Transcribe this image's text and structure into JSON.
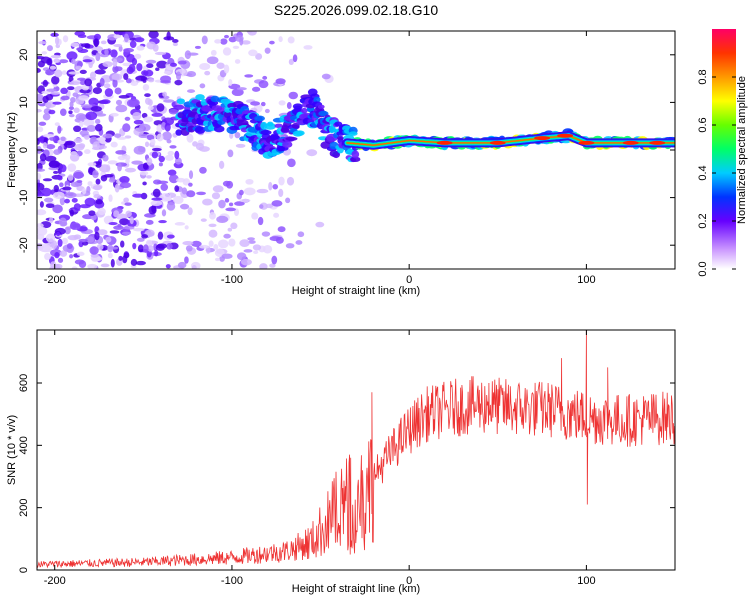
{
  "title": "S225.2026.099.02.18.G10",
  "chart_data": [
    {
      "type": "heatmap",
      "name": "spectrogram",
      "xlabel": "Height of straight line (km)",
      "ylabel": "Frequency (Hz)",
      "xlim": [
        -210,
        150
      ],
      "ylim": [
        -25,
        25
      ],
      "xticks": [
        -200,
        -100,
        0,
        100
      ],
      "yticks": [
        -20,
        -10,
        0,
        10,
        20
      ],
      "colorbar": {
        "label": "Normalized spectral amplitude",
        "range": [
          0,
          1
        ],
        "ticks": [
          0.0,
          0.2,
          0.4,
          0.6,
          0.8
        ]
      },
      "ridge": {
        "description": "dominant frequency line",
        "points": [
          [
            -130,
            7
          ],
          [
            -110,
            8
          ],
          [
            -95,
            6
          ],
          [
            -80,
            2
          ],
          [
            -65,
            5
          ],
          [
            -55,
            9
          ],
          [
            -45,
            3
          ],
          [
            -35,
            1.5
          ],
          [
            -20,
            1
          ],
          [
            0,
            2
          ],
          [
            20,
            1.5
          ],
          [
            50,
            1.5
          ],
          [
            75,
            2.5
          ],
          [
            90,
            3
          ],
          [
            100,
            1.5
          ],
          [
            130,
            1.5
          ],
          [
            150,
            1.5
          ]
        ]
      }
    },
    {
      "type": "line",
      "name": "snr",
      "xlabel": "Height of straight line (km)",
      "ylabel": "SNR (10 * v/v)",
      "xlim": [
        -210,
        150
      ],
      "ylim": [
        0,
        770
      ],
      "xticks": [
        -200,
        -100,
        0,
        100
      ],
      "yticks": [
        0,
        200,
        400,
        600
      ],
      "color": "#ee3333",
      "envelope": [
        [
          -210,
          18
        ],
        [
          -150,
          25
        ],
        [
          -100,
          40
        ],
        [
          -70,
          60
        ],
        [
          -55,
          90
        ],
        [
          -45,
          160
        ],
        [
          -38,
          210
        ],
        [
          -32,
          230
        ],
        [
          -25,
          250
        ],
        [
          -20,
          300
        ],
        [
          -10,
          380
        ],
        [
          0,
          450
        ],
        [
          10,
          500
        ],
        [
          25,
          520
        ],
        [
          40,
          530
        ],
        [
          60,
          520
        ],
        [
          80,
          515
        ],
        [
          100,
          490
        ],
        [
          120,
          480
        ],
        [
          150,
          490
        ]
      ],
      "spikes": [
        [
          -21,
          570
        ],
        [
          -33,
          360
        ],
        [
          100,
          770
        ],
        [
          100.5,
          210
        ],
        [
          112,
          650
        ],
        [
          86,
          680
        ],
        [
          45,
          600
        ]
      ]
    }
  ]
}
